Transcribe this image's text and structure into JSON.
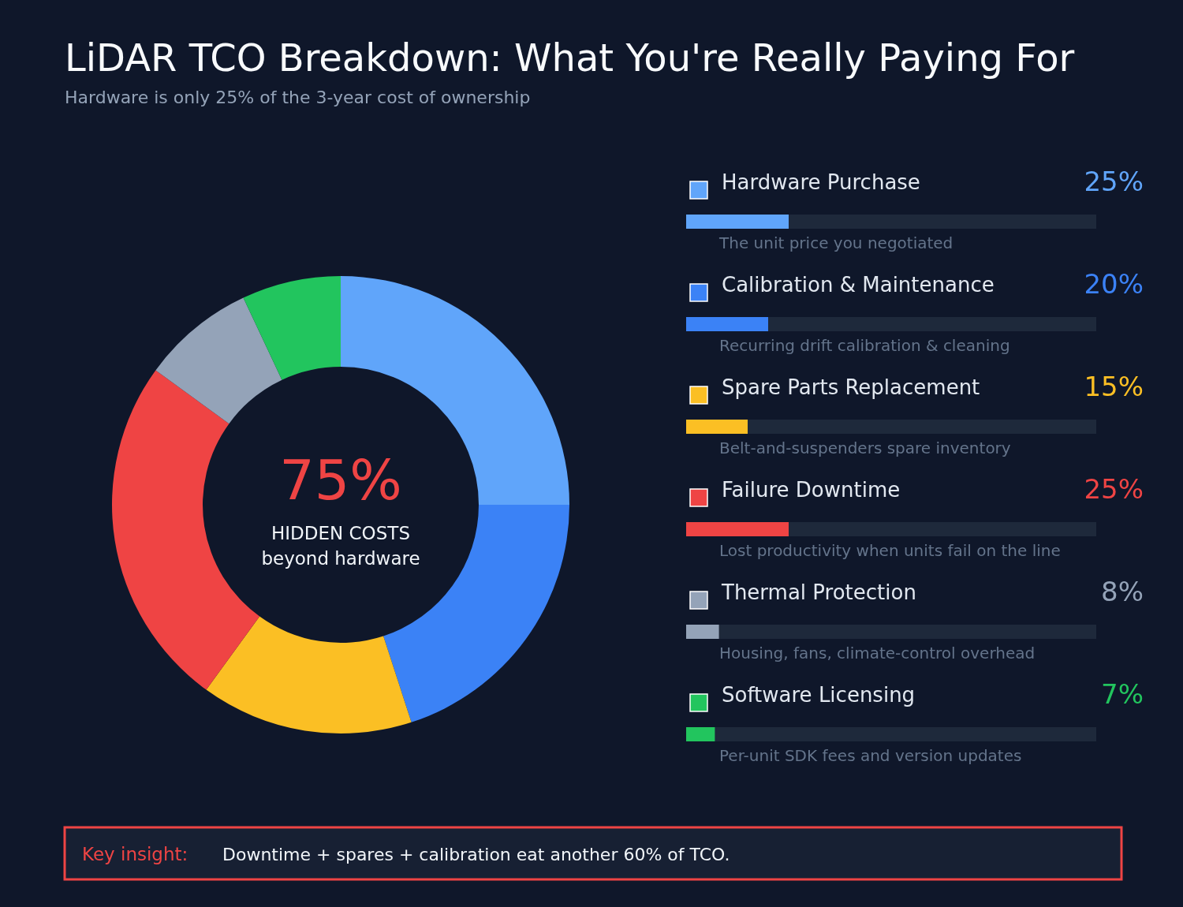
{
  "chart_data": [
    {
      "type": "donut",
      "title": "LiDAR TCO Breakdown: What You're Really Paying For",
      "subtitle": "Hardware is only 25% of the 3-year cost of ownership",
      "categories": [
        "Hardware Purchase",
        "Calibration & Maintenance",
        "Spare Parts Replacement",
        "Failure Downtime",
        "Thermal Protection",
        "Software Licensing"
      ],
      "values": [
        25,
        20,
        15,
        25,
        8,
        7
      ],
      "colors": [
        "#60a5fa",
        "#3b82f6",
        "#fbbf24",
        "#ef4444",
        "#94a3b8",
        "#22c55e"
      ],
      "legend": "right",
      "annotations": [
        "75%",
        "HIDDEN COSTS",
        "beyond hardware",
        "Key insight:",
        "Downtime + spares + calibration eat another 60% of TCO."
      ]
    },
    {
      "type": "bar",
      "orientation": "horizontal",
      "categories": [
        null,
        null,
        null,
        null,
        null,
        null
      ],
      "values": [
        25,
        20,
        15,
        25,
        8,
        7
      ],
      "colors": [
        "#60a5fa",
        "#3b82f6",
        "#fbbf24",
        "#ef4444",
        "#94a3b8",
        "#22c55e"
      ],
      "value_labels": [
        "25%",
        "20%",
        "15%",
        "25%",
        "8%",
        "7%"
      ],
      "xlim": [
        0,
        100
      ],
      "tick_labels": false,
      "annotations": [
        "The unit price you negotiated",
        "Recurring drift calibration & cleaning",
        "Belt-and-suspenders spare inventory",
        "Lost productivity when units fail on the line",
        "Housing, fans, climate-control overhead",
        "Per-unit SDK fees and version updates"
      ]
    }
  ]
}
